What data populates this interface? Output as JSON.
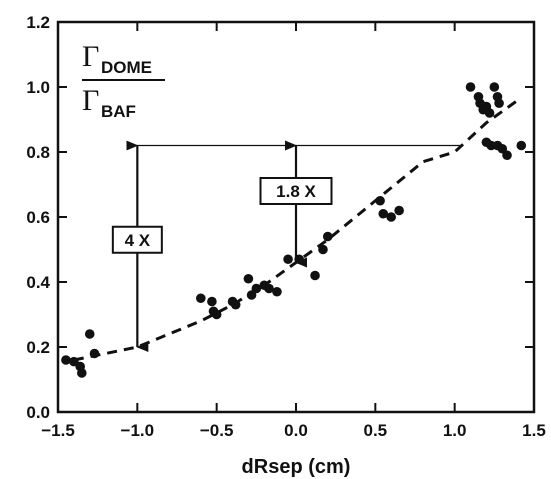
{
  "chart_data": {
    "type": "scatter",
    "title": "",
    "xlabel": "dRsep (cm)",
    "ylabel": "",
    "xlim": [
      -1.5,
      1.5
    ],
    "ylim": [
      0.0,
      1.2
    ],
    "xticks": [
      -1.5,
      -1.0,
      -0.5,
      0.0,
      0.5,
      1.0,
      1.5
    ],
    "yticks": [
      0.0,
      0.2,
      0.4,
      0.6,
      0.8,
      1.0,
      1.2
    ],
    "xtick_labels": [
      "−1.5",
      "−1.0",
      "−0.5",
      "0.0",
      "0.5",
      "1.0",
      "1.5"
    ],
    "ytick_labels": [
      "0.0",
      "0.2",
      "0.4",
      "0.6",
      "0.8",
      "1.0",
      "1.2"
    ],
    "grid": false,
    "ratio_label": {
      "numerator": "Γ",
      "numerator_sub": "DOME",
      "denominator": "Γ",
      "denominator_sub": "BAF"
    },
    "points": [
      {
        "x": -1.45,
        "y": 0.16
      },
      {
        "x": -1.4,
        "y": 0.155
      },
      {
        "x": -1.36,
        "y": 0.14
      },
      {
        "x": -1.35,
        "y": 0.12
      },
      {
        "x": -1.3,
        "y": 0.24
      },
      {
        "x": -1.27,
        "y": 0.18
      },
      {
        "x": -0.6,
        "y": 0.35
      },
      {
        "x": -0.53,
        "y": 0.34
      },
      {
        "x": -0.52,
        "y": 0.31
      },
      {
        "x": -0.5,
        "y": 0.3
      },
      {
        "x": -0.4,
        "y": 0.34
      },
      {
        "x": -0.38,
        "y": 0.33
      },
      {
        "x": -0.3,
        "y": 0.41
      },
      {
        "x": -0.28,
        "y": 0.36
      },
      {
        "x": -0.25,
        "y": 0.38
      },
      {
        "x": -0.2,
        "y": 0.39
      },
      {
        "x": -0.17,
        "y": 0.38
      },
      {
        "x": -0.12,
        "y": 0.37
      },
      {
        "x": -0.05,
        "y": 0.47
      },
      {
        "x": 0.02,
        "y": 0.47
      },
      {
        "x": 0.12,
        "y": 0.42
      },
      {
        "x": 0.17,
        "y": 0.5
      },
      {
        "x": 0.2,
        "y": 0.54
      },
      {
        "x": 0.53,
        "y": 0.65
      },
      {
        "x": 0.55,
        "y": 0.61
      },
      {
        "x": 0.6,
        "y": 0.6
      },
      {
        "x": 0.65,
        "y": 0.62
      },
      {
        "x": 1.1,
        "y": 1.0
      },
      {
        "x": 1.15,
        "y": 0.97
      },
      {
        "x": 1.16,
        "y": 0.95
      },
      {
        "x": 1.18,
        "y": 0.93
      },
      {
        "x": 1.2,
        "y": 0.94
      },
      {
        "x": 1.22,
        "y": 0.92
      },
      {
        "x": 1.25,
        "y": 1.0
      },
      {
        "x": 1.27,
        "y": 0.97
      },
      {
        "x": 1.28,
        "y": 0.95
      },
      {
        "x": 1.2,
        "y": 0.83
      },
      {
        "x": 1.23,
        "y": 0.82
      },
      {
        "x": 1.27,
        "y": 0.82
      },
      {
        "x": 1.3,
        "y": 0.81
      },
      {
        "x": 1.33,
        "y": 0.79
      },
      {
        "x": 1.42,
        "y": 0.82
      }
    ],
    "fit_curve": {
      "style": "dashed",
      "points": [
        {
          "x": -1.4,
          "y": 0.16
        },
        {
          "x": -1.2,
          "y": 0.18
        },
        {
          "x": -1.0,
          "y": 0.2
        },
        {
          "x": -0.8,
          "y": 0.24
        },
        {
          "x": -0.6,
          "y": 0.28
        },
        {
          "x": -0.4,
          "y": 0.33
        },
        {
          "x": -0.2,
          "y": 0.39
        },
        {
          "x": 0.0,
          "y": 0.46
        },
        {
          "x": 0.2,
          "y": 0.53
        },
        {
          "x": 0.4,
          "y": 0.61
        },
        {
          "x": 0.6,
          "y": 0.69
        },
        {
          "x": 0.8,
          "y": 0.77
        },
        {
          "x": 1.0,
          "y": 0.8
        },
        {
          "x": 1.2,
          "y": 0.89
        },
        {
          "x": 1.4,
          "y": 0.96
        }
      ]
    },
    "reference_line": {
      "x_start": -1.05,
      "x_end": 1.05,
      "y": 0.82
    },
    "annotations": [
      {
        "label": "4 X",
        "x": -1.0,
        "y_from": 0.82,
        "y_to": 0.2,
        "label_y": 0.53
      },
      {
        "label": "1.8 X",
        "x": 0.0,
        "y_from": 0.82,
        "y_to": 0.46,
        "label_y": 0.68
      }
    ]
  }
}
